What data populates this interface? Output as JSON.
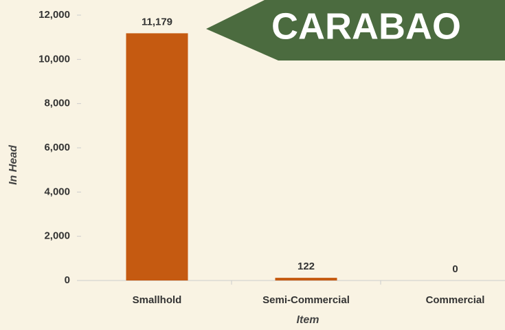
{
  "chart_data": {
    "type": "bar",
    "annotation": "CARABAO",
    "categories": [
      "Smallhold",
      "Semi-Commercial",
      "Commercial"
    ],
    "values": [
      11179,
      122,
      0
    ],
    "value_labels": [
      "11,179",
      "122",
      "0"
    ],
    "color": "#c55a11",
    "ylabel": "In Head",
    "xlabel": "Item",
    "ylim": [
      0,
      12000
    ],
    "yticks": [
      0,
      {
        "value": 2000,
        "label": "2,000"
      },
      {
        "value": 4000,
        "label": "4,000"
      },
      {
        "value": 6000,
        "label": "6,000"
      },
      {
        "value": 8000,
        "label": "8,000"
      },
      {
        "value": 10000,
        "label": "10,000"
      },
      {
        "value": 12000,
        "label": "12,000"
      }
    ],
    "grid": false
  }
}
